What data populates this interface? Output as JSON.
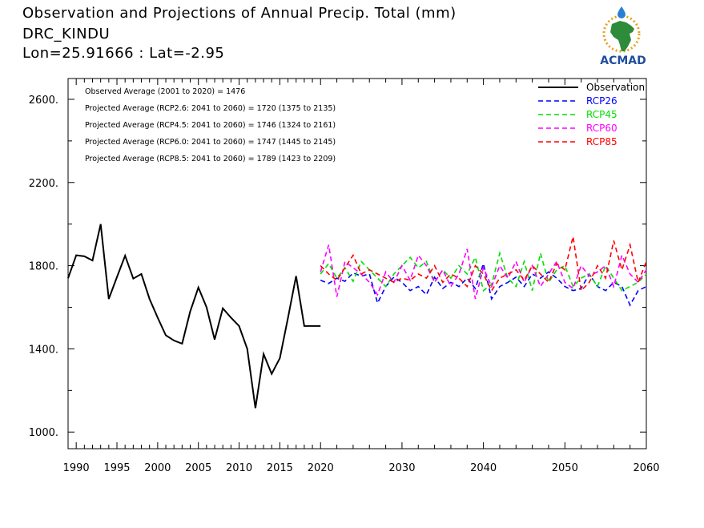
{
  "header": {
    "line1": "Observation and Projections of Annual Precip. Total (mm)",
    "line2": "DRC_KINDU",
    "line3": "Lon=25.91666 : Lat=-2.95"
  },
  "logo": {
    "text": "ACMAD",
    "colors": {
      "green": "#2e8b3a",
      "gold": "#e8a21a",
      "blue": "#1f4e9c",
      "drop": "#2a7fd4"
    }
  },
  "chart_data": {
    "type": "line",
    "xlim": [
      1989,
      2060
    ],
    "ylim": [
      920,
      2700
    ],
    "yticks": [
      1000,
      1400,
      1800,
      2200,
      2600
    ],
    "ytick_labels": [
      "1000.",
      "1400.",
      "1800.",
      "2200.",
      "2600."
    ],
    "xticks_major": [
      1990,
      1995,
      2000,
      2005,
      2010,
      2015,
      2020,
      2030,
      2040,
      2050,
      2060
    ],
    "annotations": [
      "Observed Average (2001 to 2020) = 1476",
      "Projected Average (RCP2.6: 2041 to 2060) = 1720 (1375 to 2135)",
      "Projected Average (RCP4.5: 2041 to 2060) = 1746 (1324 to 2161)",
      "Projected Average (RCP6.0: 2041 to 2060) = 1747 (1445 to 2145)",
      "Projected Average (RCP8.5: 2041 to 2060) = 1789 (1423 to 2209)"
    ],
    "series": [
      {
        "name": "Observation",
        "color": "#000000",
        "dash": "solid",
        "x": [
          1989,
          1990,
          1991,
          1992,
          1993,
          1994,
          1995,
          1996,
          1997,
          1998,
          1999,
          2000,
          2001,
          2002,
          2003,
          2004,
          2005,
          2006,
          2007,
          2008,
          2009,
          2010,
          2011,
          2012,
          2013,
          2014,
          2015,
          2016,
          2017,
          2018,
          2019,
          2020
        ],
        "y": [
          1740,
          1850,
          1845,
          1825,
          2000,
          1640,
          1745,
          1848,
          1738,
          1760,
          1640,
          1550,
          1465,
          1440,
          1425,
          1580,
          1695,
          1600,
          1445,
          1595,
          1550,
          1510,
          1400,
          1115,
          1375,
          1280,
          1355,
          1550,
          1750,
          1510,
          1510,
          1510
        ]
      },
      {
        "name": "RCP26",
        "color": "#0000ff",
        "dash": "6,4",
        "x": [
          2020,
          2021,
          2022,
          2023,
          2024,
          2025,
          2026,
          2027,
          2028,
          2029,
          2030,
          2031,
          2032,
          2033,
          2034,
          2035,
          2036,
          2037,
          2038,
          2039,
          2040,
          2041,
          2042,
          2043,
          2044,
          2045,
          2046,
          2047,
          2048,
          2049,
          2050,
          2051,
          2052,
          2053,
          2054,
          2055,
          2056,
          2057,
          2058,
          2059,
          2060
        ],
        "y": [
          1730,
          1715,
          1740,
          1725,
          1765,
          1750,
          1760,
          1620,
          1700,
          1745,
          1720,
          1680,
          1700,
          1660,
          1745,
          1690,
          1720,
          1700,
          1740,
          1690,
          1810,
          1640,
          1700,
          1720,
          1745,
          1700,
          1760,
          1740,
          1770,
          1740,
          1700,
          1680,
          1690,
          1760,
          1700,
          1680,
          1720,
          1700,
          1610,
          1680,
          1700
        ]
      },
      {
        "name": "RCP45",
        "color": "#00e000",
        "dash": "6,4",
        "x": [
          2020,
          2021,
          2022,
          2023,
          2024,
          2025,
          2026,
          2027,
          2028,
          2029,
          2030,
          2031,
          2032,
          2033,
          2034,
          2035,
          2036,
          2037,
          2038,
          2039,
          2040,
          2041,
          2042,
          2043,
          2044,
          2045,
          2046,
          2047,
          2048,
          2049,
          2050,
          2051,
          2052,
          2053,
          2054,
          2055,
          2056,
          2057,
          2058,
          2059,
          2060
        ],
        "y": [
          1760,
          1810,
          1740,
          1790,
          1725,
          1820,
          1780,
          1740,
          1700,
          1760,
          1800,
          1840,
          1790,
          1820,
          1720,
          1780,
          1740,
          1800,
          1760,
          1840,
          1680,
          1710,
          1860,
          1740,
          1700,
          1820,
          1680,
          1860,
          1720,
          1780,
          1800,
          1700,
          1740,
          1760,
          1700,
          1800,
          1740,
          1680,
          1700,
          1720,
          1760
        ]
      },
      {
        "name": "RCP60",
        "color": "#ff00ff",
        "dash": "6,4",
        "x": [
          2020,
          2021,
          2022,
          2023,
          2024,
          2025,
          2026,
          2027,
          2028,
          2029,
          2030,
          2031,
          2032,
          2033,
          2034,
          2035,
          2036,
          2037,
          2038,
          2039,
          2040,
          2041,
          2042,
          2043,
          2044,
          2045,
          2046,
          2047,
          2048,
          2049,
          2050,
          2051,
          2052,
          2053,
          2054,
          2055,
          2056,
          2057,
          2058,
          2059,
          2060
        ],
        "y": [
          1770,
          1900,
          1650,
          1820,
          1790,
          1760,
          1720,
          1660,
          1770,
          1720,
          1800,
          1730,
          1850,
          1800,
          1720,
          1780,
          1700,
          1760,
          1880,
          1640,
          1790,
          1700,
          1800,
          1740,
          1820,
          1720,
          1800,
          1700,
          1760,
          1820,
          1720,
          1690,
          1800,
          1750,
          1770,
          1800,
          1700,
          1850,
          1760,
          1720,
          1780
        ]
      },
      {
        "name": "RCP85",
        "color": "#ff0000",
        "dash": "6,4",
        "x": [
          2020,
          2021,
          2022,
          2023,
          2024,
          2025,
          2026,
          2027,
          2028,
          2029,
          2030,
          2031,
          2032,
          2033,
          2034,
          2035,
          2036,
          2037,
          2038,
          2039,
          2040,
          2041,
          2042,
          2043,
          2044,
          2045,
          2046,
          2047,
          2048,
          2049,
          2050,
          2051,
          2052,
          2053,
          2054,
          2055,
          2056,
          2057,
          2058,
          2059,
          2060
        ],
        "y": [
          1800,
          1760,
          1730,
          1790,
          1850,
          1760,
          1780,
          1760,
          1740,
          1720,
          1740,
          1730,
          1760,
          1740,
          1800,
          1720,
          1760,
          1740,
          1700,
          1800,
          1760,
          1680,
          1740,
          1760,
          1780,
          1730,
          1800,
          1760,
          1720,
          1810,
          1780,
          1940,
          1680,
          1720,
          1800,
          1740,
          1920,
          1780,
          1900,
          1720,
          1820
        ]
      }
    ]
  }
}
